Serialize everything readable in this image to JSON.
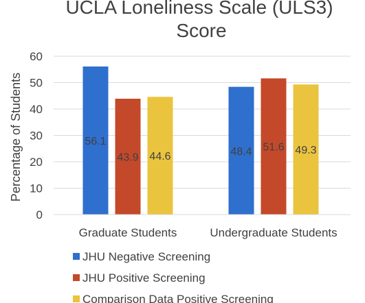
{
  "chart_data": {
    "type": "bar",
    "title_lines": [
      "UCLA Loneliness Scale (ULS3)",
      "Score"
    ],
    "ylabel": "Percentage of Students",
    "xlabel": "",
    "ylim": [
      0,
      60
    ],
    "yticks": [
      "0",
      "10",
      "20",
      "30",
      "40",
      "50",
      "60"
    ],
    "grid": true,
    "legend_position": "bottom",
    "categories": [
      "Graduate Students",
      "Undergraduate Students"
    ],
    "series": [
      {
        "name": "JHU Negative Screening",
        "color": "#2f6fce",
        "values": [
          56.1,
          48.4
        ],
        "labels": [
          "56.1",
          "48.4"
        ]
      },
      {
        "name": "JHU Positive Screening",
        "color": "#c4492a",
        "values": [
          43.9,
          51.6
        ],
        "labels": [
          "43.9",
          "51.6"
        ]
      },
      {
        "name": "Comparison Data Positive Screening",
        "color": "#ebc43f",
        "values": [
          44.6,
          49.3
        ],
        "labels": [
          "44.6",
          "49.3"
        ]
      }
    ]
  }
}
